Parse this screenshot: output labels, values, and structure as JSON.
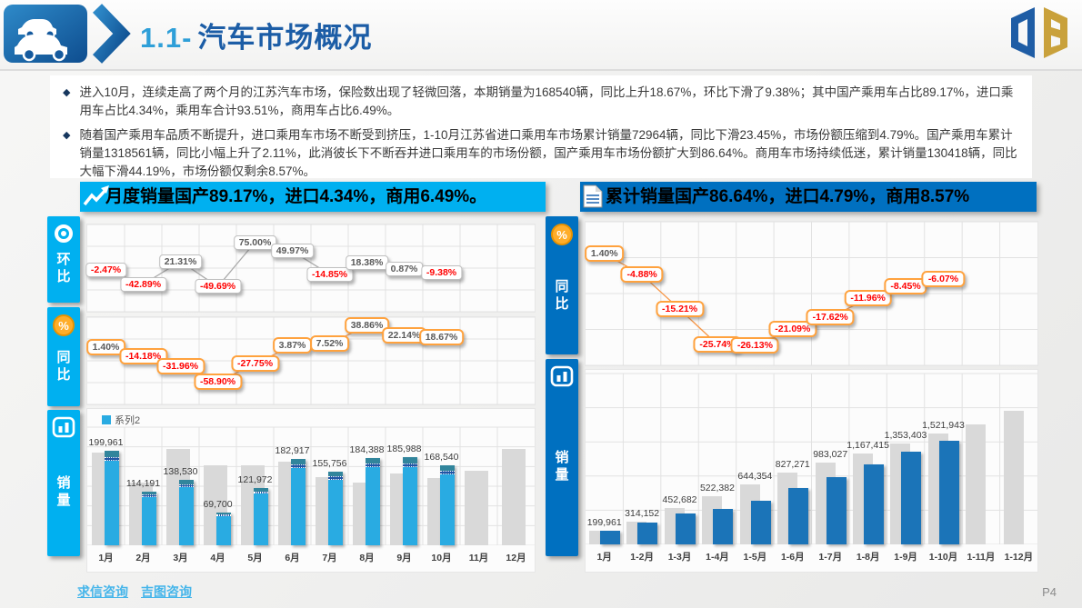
{
  "header": {
    "title_prefix": "1.1-",
    "title": "汽车市场概况"
  },
  "bullet_marker": "◆",
  "summary_bullets": [
    "进入10月，连续走高了两个月的江苏汽车市场，保险数出现了轻微回落，本期销量为168540辆，同比上升18.67%，环比下滑了9.38%；其中国产乘用车占比89.17%，进口乘用车占比4.34%，乘用车合计93.51%，商用车占比6.49%。",
    "随着国产乘用车品质不断提升，进口乘用车市场不断受到挤压，1-10月江苏省进口乘用车市场累计销量72964辆，同比下滑23.45%，市场份额压缩到4.79%。国产乘用车累计销量1318561辆，同比小幅上升了2.11%，此消彼长下不断吞并进口乘用车的市场份额，国产乘用车市场份额扩大到86.64%。商用车市场持续低迷，累计销量130418辆，同比大幅下滑44.19%，市场份额仅剩余8.57%。"
  ],
  "left_panel": {
    "header_text": "月度销量国产89.17%，进口4.34%，商用6.49%。",
    "accent_color": "#00B0F0",
    "sidebar": [
      {
        "label": "环比",
        "icon": "target-icon"
      },
      {
        "label": "同比",
        "icon": "percent-icon"
      },
      {
        "label": "销量",
        "icon": "bar-chart-icon"
      }
    ]
  },
  "right_panel": {
    "header_text": "累计销量国产86.64%，进口4.79%，商用8.57%",
    "accent_color": "#0070C0",
    "sidebar": [
      {
        "label": "同比",
        "icon": "percent-icon"
      },
      {
        "label": "销量",
        "icon": "bar-chart-icon"
      }
    ]
  },
  "footer": {
    "links": [
      "求信咨询",
      "吉图咨询"
    ],
    "page_number": "P4"
  },
  "colors": {
    "cyan_accent": "#00B0F0",
    "blue_accent": "#0070C0",
    "bar_cyan": "#29ABE2",
    "bar_dark_blue": "#2156A5",
    "bar_teal": "#31859C",
    "bar_gray": "#D9D9D9",
    "bar_blue": "#1B74B8",
    "callout_orange_border": "#FFA23E",
    "callout_gray_border": "#BFBFBF",
    "negative_red": "#FF0000",
    "positive_gray": "#595959"
  },
  "chart_data": [
    {
      "id": "monthly_mom",
      "type": "line",
      "title": "环比",
      "categories": [
        "1月",
        "2月",
        "3月",
        "4月",
        "5月",
        "6月",
        "7月",
        "8月",
        "9月",
        "10月",
        "11月",
        "12月"
      ],
      "values": [
        -2.47,
        -42.89,
        21.31,
        -49.69,
        75.0,
        49.97,
        -14.85,
        18.38,
        0.87,
        -9.38,
        null,
        null
      ],
      "labels": [
        "-2.47%",
        "-42.89%",
        "21.31%",
        "-49.69%",
        "75.00%",
        "49.97%",
        "-14.85%",
        "18.38%",
        "0.87%",
        "-9.38%",
        null,
        null
      ],
      "unit": "%",
      "ylim": [
        -120,
        125
      ],
      "grid": true,
      "legend_position": "none"
    },
    {
      "id": "monthly_yoy",
      "type": "line",
      "title": "同比",
      "categories": [
        "1月",
        "2月",
        "3月",
        "4月",
        "5月",
        "6月",
        "7月",
        "8月",
        "9月",
        "10月",
        "11月",
        "12月"
      ],
      "values": [
        1.4,
        -14.18,
        -31.96,
        -58.9,
        -27.75,
        3.87,
        7.52,
        38.86,
        22.14,
        18.67,
        null,
        null
      ],
      "labels": [
        "1.40%",
        "-14.18%",
        "-31.96%",
        "-58.90%",
        "-27.75%",
        "3.87%",
        "7.52%",
        "38.86%",
        "22.14%",
        "18.67%",
        null,
        null
      ],
      "unit": "%",
      "ylim": [
        -99,
        54
      ],
      "grid": true,
      "legend_position": "none"
    },
    {
      "id": "monthly_sales",
      "type": "bar",
      "title": "销量",
      "legend": "系列2",
      "categories": [
        "1月",
        "2月",
        "3月",
        "4月",
        "5月",
        "6月",
        "7月",
        "8月",
        "9月",
        "10月",
        "11月",
        "12月"
      ],
      "series": [
        {
          "name": "系列2",
          "values": [
            199961,
            114191,
            138530,
            69700,
            121972,
            182917,
            155756,
            184388,
            185988,
            168540,
            null,
            null
          ]
        },
        {
          "name": "对比灰色柱(未标注,估读)",
          "values": [
            197200,
            133100,
            203600,
            169600,
            168800,
            176100,
            144900,
            132800,
            152300,
            142000,
            157000,
            204000
          ]
        }
      ],
      "labels": [
        "199,961",
        "114,191",
        "138,530",
        "69,700",
        "121,972",
        "182,917",
        "155,756",
        "184,388",
        "185,988",
        "168,540",
        null,
        null
      ],
      "stack_percent": {
        "国产": 89.17,
        "进口": 4.34,
        "商用": 6.49
      },
      "ylim": [
        0,
        250000
      ],
      "grid": true
    },
    {
      "id": "cumulative_yoy",
      "type": "line",
      "title": "同比",
      "categories": [
        "1月",
        "1-2月",
        "1-3月",
        "1-4月",
        "1-5月",
        "1-6月",
        "1-7月",
        "1-8月",
        "1-9月",
        "1-10月",
        "1-11月",
        "1-12月"
      ],
      "values": [
        1.4,
        -4.88,
        -15.21,
        -25.74,
        -26.13,
        -21.09,
        -17.62,
        -11.96,
        -8.45,
        -6.07,
        null,
        null
      ],
      "labels": [
        "1.40%",
        "-4.88%",
        "-15.21%",
        "-25.74%",
        "-26.13%",
        "-21.09%",
        "-17.62%",
        "-11.96%",
        "-8.45%",
        "-6.07%",
        null,
        null
      ],
      "unit": "%",
      "ylim": [
        -32,
        11
      ],
      "grid": true,
      "legend_position": "none"
    },
    {
      "id": "cumulative_sales",
      "type": "bar",
      "title": "销量",
      "categories": [
        "1月",
        "1-2月",
        "1-3月",
        "1-4月",
        "1-5月",
        "1-6月",
        "1-7月",
        "1-8月",
        "1-9月",
        "1-10月",
        "1-11月",
        "1-12月"
      ],
      "series": [
        {
          "name": "累计销量",
          "values": [
            199961,
            314152,
            452682,
            522382,
            644354,
            827271,
            983027,
            1167415,
            1353403,
            1521943,
            null,
            null
          ]
        },
        {
          "name": "对比灰色柱(未标注,估读)",
          "values": [
            197200,
            330300,
            533900,
            703500,
            872300,
            1048400,
            1193300,
            1326000,
            1478300,
            1620300,
            1750000,
            1950000
          ]
        }
      ],
      "labels": [
        "199,961",
        "314,152",
        "452,682",
        "522,382",
        "644,354",
        "827,271",
        "983,027",
        "1,167,415",
        "1,353,403",
        "1,521,943",
        null,
        null
      ],
      "ylim": [
        0,
        2500000
      ],
      "grid": true
    }
  ]
}
